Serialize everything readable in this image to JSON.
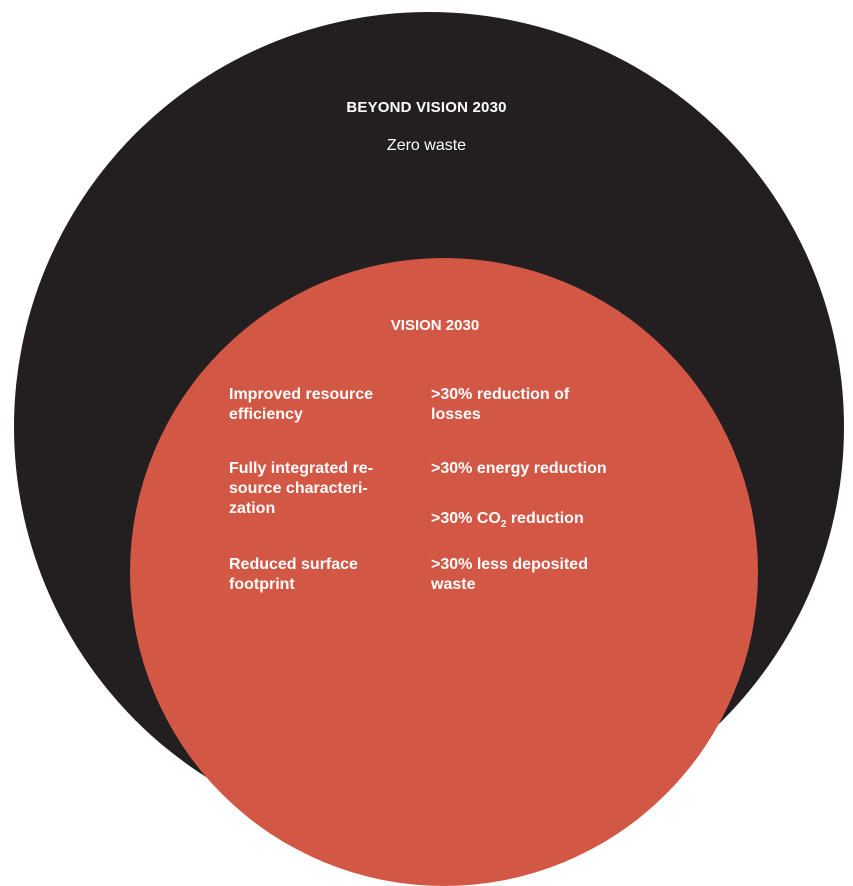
{
  "outer": {
    "title": "BEYOND VISION 2030",
    "subtitle": "Zero waste",
    "color": "#231f20"
  },
  "inner": {
    "title": "VISION 2030",
    "color": "#d35745",
    "left_items": [
      {
        "line1": "Improved resource",
        "line2": "efficiency",
        "line3": ""
      },
      {
        "line1": "Fully integrated re-",
        "line2": "source characteri-",
        "line3": "zation"
      },
      {
        "line1": "Reduced surface",
        "line2": "footprint",
        "line3": ""
      }
    ],
    "right_items": [
      {
        "line1": ">30% reduction of",
        "line2": "losses"
      },
      {
        "line1": ">30% energy reduction"
      },
      {
        "prefix": ">30% CO",
        "subscript": "2",
        "suffix": " reduction"
      },
      {
        "line1": ">30% less deposited",
        "line2": "waste"
      }
    ]
  }
}
